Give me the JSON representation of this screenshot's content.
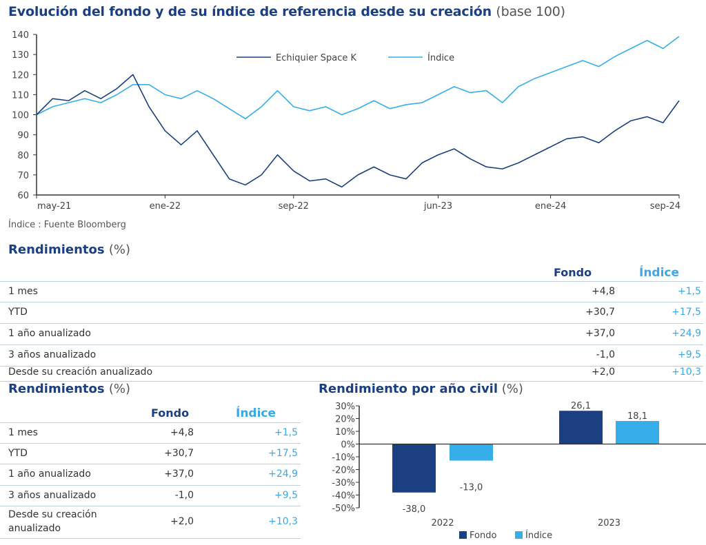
{
  "header": {
    "title": "Evolución del fondo y de su índice de referencia desde su creación",
    "title_suffix": "(base 100)"
  },
  "source": "Índice : Fuente Bloomberg",
  "colors": {
    "fondo": "#1b3f80",
    "indice": "#35aeea"
  },
  "chart_data": [
    {
      "type": "line",
      "title": "Evolución del fondo y de su índice de referencia desde su creación (base 100)",
      "ylim": [
        60,
        140
      ],
      "yticks": [
        60,
        70,
        80,
        90,
        100,
        110,
        120,
        130,
        140
      ],
      "xtick_labels": [
        "may-21",
        "ene-22",
        "sep-22",
        "jun-23",
        "ene-24",
        "sep-24"
      ],
      "xtick_index": [
        0,
        8,
        16,
        25,
        32,
        40
      ],
      "legend_position": "top-center",
      "x": [
        "may-21",
        "jun-21",
        "jul-21",
        "ago-21",
        "sep-21",
        "oct-21",
        "nov-21",
        "dic-21",
        "ene-22",
        "feb-22",
        "mar-22",
        "abr-22",
        "may-22",
        "jun-22",
        "jul-22",
        "ago-22",
        "sep-22",
        "oct-22",
        "nov-22",
        "dic-22",
        "ene-23",
        "feb-23",
        "mar-23",
        "abr-23",
        "may-23",
        "jun-23",
        "jul-23",
        "ago-23",
        "sep-23",
        "oct-23",
        "nov-23",
        "dic-23",
        "ene-24",
        "feb-24",
        "mar-24",
        "abr-24",
        "may-24",
        "jun-24",
        "jul-24",
        "ago-24",
        "sep-24"
      ],
      "series": [
        {
          "name": "Echiquier Space K",
          "color": "#1b3f80",
          "values": [
            100,
            108,
            107,
            112,
            108,
            113,
            120,
            104,
            92,
            85,
            92,
            80,
            68,
            65,
            70,
            80,
            72,
            67,
            68,
            64,
            70,
            74,
            70,
            68,
            76,
            80,
            83,
            78,
            74,
            73,
            76,
            80,
            84,
            88,
            89,
            86,
            92,
            97,
            99,
            96,
            107
          ]
        },
        {
          "name": "Índice",
          "color": "#35aeea",
          "values": [
            100,
            104,
            106,
            108,
            106,
            110,
            115,
            115,
            110,
            108,
            112,
            108,
            103,
            98,
            104,
            112,
            104,
            102,
            104,
            100,
            103,
            107,
            103,
            105,
            106,
            110,
            114,
            111,
            112,
            106,
            114,
            118,
            121,
            124,
            127,
            124,
            129,
            133,
            137,
            133,
            139
          ]
        }
      ]
    },
    {
      "type": "bar",
      "title": "Rendimiento por año civil (%)",
      "categories": [
        "2022",
        "2023"
      ],
      "ylim": [
        -50,
        30
      ],
      "yticks": [
        "30%",
        "20%",
        "10%",
        "0%",
        "-10%",
        "-20%",
        "-30%",
        "-40%",
        "-50%"
      ],
      "legend_position": "bottom",
      "series": [
        {
          "name": "Fondo",
          "color": "#1b3f80",
          "values": [
            -38.0,
            26.1
          ],
          "labels": [
            "-38,0",
            "26,1"
          ]
        },
        {
          "name": "Índice",
          "color": "#35aeea",
          "values": [
            -13.0,
            18.1
          ],
          "labels": [
            "-13,0",
            "18,1"
          ]
        }
      ]
    }
  ],
  "returns_full": {
    "title": "Rendimientos",
    "title_suffix": "(%)",
    "col_fondo": "Fondo",
    "col_indice": "Índice",
    "rows": [
      {
        "label": "1 mes",
        "fondo": "+4,8",
        "indice": "+1,5"
      },
      {
        "label": "YTD",
        "fondo": "+30,7",
        "indice": "+17,5"
      },
      {
        "label": "1 año anualizado",
        "fondo": "+37,0",
        "indice": "+24,9"
      },
      {
        "label": "3 años anualizado",
        "fondo": "-1,0",
        "indice": "+9,5"
      },
      {
        "label": "Desde su creación anualizado",
        "fondo": "+2,0",
        "indice": "+10,3"
      }
    ]
  },
  "returns_small": {
    "title": "Rendimientos",
    "title_suffix": "(%)",
    "col_fondo": "Fondo",
    "col_indice": "Índice",
    "rows": [
      {
        "label": "1 mes",
        "fondo": "+4,8",
        "indice": "+1,5"
      },
      {
        "label": "YTD",
        "fondo": "+30,7",
        "indice": "+17,5"
      },
      {
        "label": "1 año anualizado",
        "fondo": "+37,0",
        "indice": "+24,9"
      },
      {
        "label": "3 años anualizado",
        "fondo": "-1,0",
        "indice": "+9,5"
      },
      {
        "label": "Desde su creación",
        "label2": "anualizado",
        "fondo": "+2,0",
        "indice": "+10,3"
      }
    ]
  }
}
